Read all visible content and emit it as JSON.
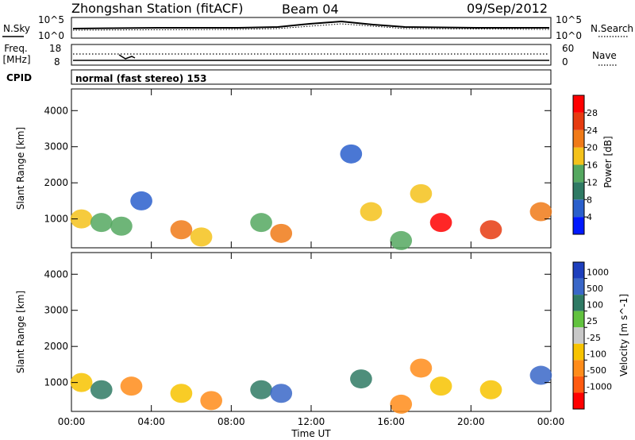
{
  "header": {
    "station": "Zhongshan Station (fitACF)",
    "beam": "Beam 04",
    "date": "09/Sep/2012"
  },
  "noise_panel": {
    "left_label": "N.Sky",
    "right_label": "N.Search",
    "left_ticks": [
      "10^5",
      "10^0"
    ],
    "right_ticks": [
      "10^5",
      "10^0"
    ]
  },
  "freq_panel": {
    "label_line1": "Freq.",
    "label_line2": "[MHz]",
    "left_ticks": [
      "18",
      "8"
    ],
    "right_label": "Nave",
    "right_ticks": [
      "60",
      "0"
    ]
  },
  "cpid": {
    "label": "CPID",
    "text": "normal (fast stereo) 153"
  },
  "axes": {
    "ylabel": "Slant Range [km]",
    "yticks": [
      "4000",
      "3000",
      "2000",
      "1000"
    ],
    "xticks": [
      "00:00",
      "04:00",
      "08:00",
      "12:00",
      "16:00",
      "20:00",
      "00:00"
    ],
    "xlabel": "Time UT"
  },
  "power_colorbar": {
    "title": "Power [dB]",
    "ticks": [
      "28",
      "24",
      "20",
      "16",
      "12",
      "8",
      "4"
    ],
    "colors": [
      "#0019ff",
      "#2a5fcc",
      "#2f7a64",
      "#55a860",
      "#f4c21b",
      "#f07a18",
      "#e63b10",
      "#ff0000"
    ]
  },
  "velocity_colorbar": {
    "title": "Velocity [m s^-1]",
    "ticks": [
      "1000",
      "500",
      "100",
      "25",
      "-25",
      "-100",
      "-500",
      "-1000"
    ],
    "colors": [
      "#1d3fbd",
      "#3a67c8",
      "#2f7a64",
      "#62c23f",
      "#c8c8c8",
      "#f7c300",
      "#ff8c1a",
      "#ff5a10",
      "#ff0000"
    ]
  },
  "chart_data": [
    {
      "type": "heatmap",
      "title": "Power [dB]",
      "xlabel": "Time UT",
      "ylabel": "Slant Range [km]",
      "xlim": [
        0,
        24
      ],
      "ylim": [
        200,
        4600
      ],
      "series": [
        {
          "name": "Power [dB]",
          "points": [
            {
              "x": 0.5,
              "y": 1000,
              "v": 18
            },
            {
              "x": 1.5,
              "y": 900,
              "v": 14
            },
            {
              "x": 2.5,
              "y": 800,
              "v": 12
            },
            {
              "x": 3.5,
              "y": 1500,
              "v": 6
            },
            {
              "x": 5.5,
              "y": 700,
              "v": 20
            },
            {
              "x": 6.5,
              "y": 500,
              "v": 16
            },
            {
              "x": 9.5,
              "y": 900,
              "v": 14
            },
            {
              "x": 10.5,
              "y": 600,
              "v": 22
            },
            {
              "x": 14.0,
              "y": 2800,
              "v": 4
            },
            {
              "x": 15.0,
              "y": 1200,
              "v": 16
            },
            {
              "x": 16.5,
              "y": 400,
              "v": 14
            },
            {
              "x": 17.5,
              "y": 1700,
              "v": 18
            },
            {
              "x": 18.5,
              "y": 900,
              "v": 28
            },
            {
              "x": 21.0,
              "y": 700,
              "v": 24
            },
            {
              "x": 23.5,
              "y": 1200,
              "v": 20
            }
          ]
        }
      ]
    },
    {
      "type": "heatmap",
      "title": "Velocity [m s^-1]",
      "xlabel": "Time UT",
      "ylabel": "Slant Range [km]",
      "xlim": [
        0,
        24
      ],
      "ylim": [
        200,
        4600
      ],
      "series": [
        {
          "name": "Velocity [m s^-1]",
          "points": [
            {
              "x": 0.5,
              "y": 1000,
              "v": -100
            },
            {
              "x": 1.5,
              "y": 800,
              "v": 100
            },
            {
              "x": 3.0,
              "y": 900,
              "v": -200
            },
            {
              "x": 5.5,
              "y": 700,
              "v": -100
            },
            {
              "x": 7.0,
              "y": 500,
              "v": -150
            },
            {
              "x": 9.5,
              "y": 800,
              "v": 300
            },
            {
              "x": 10.5,
              "y": 700,
              "v": 800
            },
            {
              "x": 14.5,
              "y": 1100,
              "v": 200
            },
            {
              "x": 16.5,
              "y": 400,
              "v": -120
            },
            {
              "x": 17.5,
              "y": 1400,
              "v": -150
            },
            {
              "x": 18.5,
              "y": 900,
              "v": -100
            },
            {
              "x": 21.0,
              "y": 800,
              "v": -100
            },
            {
              "x": 23.5,
              "y": 1200,
              "v": 500
            }
          ]
        }
      ]
    }
  ]
}
